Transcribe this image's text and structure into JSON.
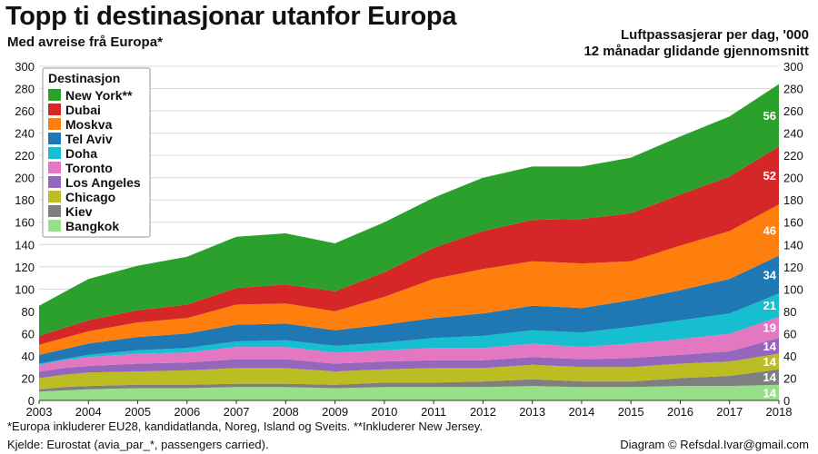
{
  "title": "Topp ti destinasjonar utanfor Europa",
  "subtitle": "Med avreise frå Europa*",
  "unit_label": [
    "Luftpassasjerar per dag, '000",
    "12 månadar glidande gjennomsnitt"
  ],
  "footnote": "*Europa inkluderer EU28, kandidatlanda, Noreg, Island og Sveits. **Inkluderer New Jersey.",
  "source": "Kjelde: Eurostat (avia_par_*, passengers carried).",
  "credit": "Diagram © Refsdal.Ivar@gmail.com",
  "colors": {
    "New York**": "#2ca02c",
    "Dubai": "#d62728",
    "Moskva": "#ff7f0e",
    "Tel Aviv": "#1f77b4",
    "Doha": "#17becf",
    "Toronto": "#e377c2",
    "Los Angeles": "#9467bd",
    "Chicago": "#bcbd22",
    "Kiev": "#7f7f7f",
    "Bangkok": "#98df8a",
    "grid": "#d9d9d9"
  },
  "chart_data": {
    "type": "area",
    "stacked": true,
    "title": "Topp ti destinasjonar utanfor Europa",
    "ylabel": "Luftpassasjerar per dag, '000",
    "ylim": [
      0,
      300
    ],
    "yticks": [
      0,
      20,
      40,
      60,
      80,
      100,
      120,
      140,
      160,
      180,
      200,
      220,
      240,
      260,
      280,
      300
    ],
    "xlim": [
      2003,
      2018
    ],
    "xticks": [
      2003,
      2004,
      2005,
      2006,
      2007,
      2008,
      2009,
      2010,
      2011,
      2012,
      2013,
      2014,
      2015,
      2016,
      2017,
      2018
    ],
    "legend_title": "Destinasjon",
    "legend_position": "top-left",
    "x": [
      2003,
      2003.5,
      2004,
      2005,
      2006,
      2007,
      2008,
      2009,
      2010,
      2011,
      2012,
      2013,
      2014,
      2015,
      2016,
      2017,
      2018
    ],
    "series": [
      {
        "name": "Bangkok",
        "values": [
          8,
          9,
          10,
          11,
          11,
          12,
          12,
          11,
          12,
          12,
          12,
          13,
          12,
          12,
          13,
          13,
          14
        ],
        "end_label": "14"
      },
      {
        "name": "Kiev",
        "values": [
          2,
          3,
          3,
          3,
          3,
          3,
          3,
          3,
          4,
          4,
          5,
          6,
          5,
          5,
          7,
          9,
          14
        ],
        "end_label": "14"
      },
      {
        "name": "Chicago",
        "values": [
          10,
          11,
          12,
          12,
          13,
          14,
          14,
          12,
          12,
          13,
          12,
          13,
          13,
          13,
          13,
          13,
          14
        ],
        "end_label": "14"
      },
      {
        "name": "Los Angeles",
        "values": [
          6,
          6,
          6,
          7,
          7,
          8,
          8,
          7,
          7,
          7,
          7,
          7,
          7,
          8,
          8,
          9,
          14
        ],
        "end_label": "14"
      },
      {
        "name": "Toronto",
        "values": [
          6,
          7,
          8,
          9,
          9,
          11,
          11,
          10,
          10,
          11,
          11,
          12,
          11,
          13,
          14,
          16,
          19
        ],
        "end_label": "19"
      },
      {
        "name": "Doha",
        "values": [
          1,
          1,
          2,
          3,
          4,
          5,
          6,
          6,
          7,
          9,
          11,
          12,
          13,
          15,
          17,
          18,
          21
        ],
        "end_label": "21"
      },
      {
        "name": "Tel Aviv",
        "values": [
          8,
          9,
          10,
          12,
          13,
          15,
          15,
          14,
          16,
          18,
          20,
          22,
          22,
          24,
          27,
          31,
          34
        ],
        "end_label": "34"
      },
      {
        "name": "Moskva",
        "values": [
          9,
          10,
          11,
          13,
          14,
          18,
          18,
          17,
          25,
          35,
          40,
          40,
          40,
          35,
          40,
          43,
          46
        ],
        "end_label": "46"
      },
      {
        "name": "Dubai",
        "values": [
          8,
          9,
          10,
          11,
          12,
          15,
          17,
          18,
          22,
          28,
          34,
          37,
          40,
          43,
          46,
          49,
          52
        ],
        "end_label": "52"
      },
      {
        "name": "New York**",
        "values": [
          27,
          32,
          37,
          40,
          43,
          46,
          46,
          43,
          45,
          45,
          48,
          48,
          47,
          50,
          52,
          54,
          56
        ],
        "end_label": "56"
      }
    ]
  }
}
